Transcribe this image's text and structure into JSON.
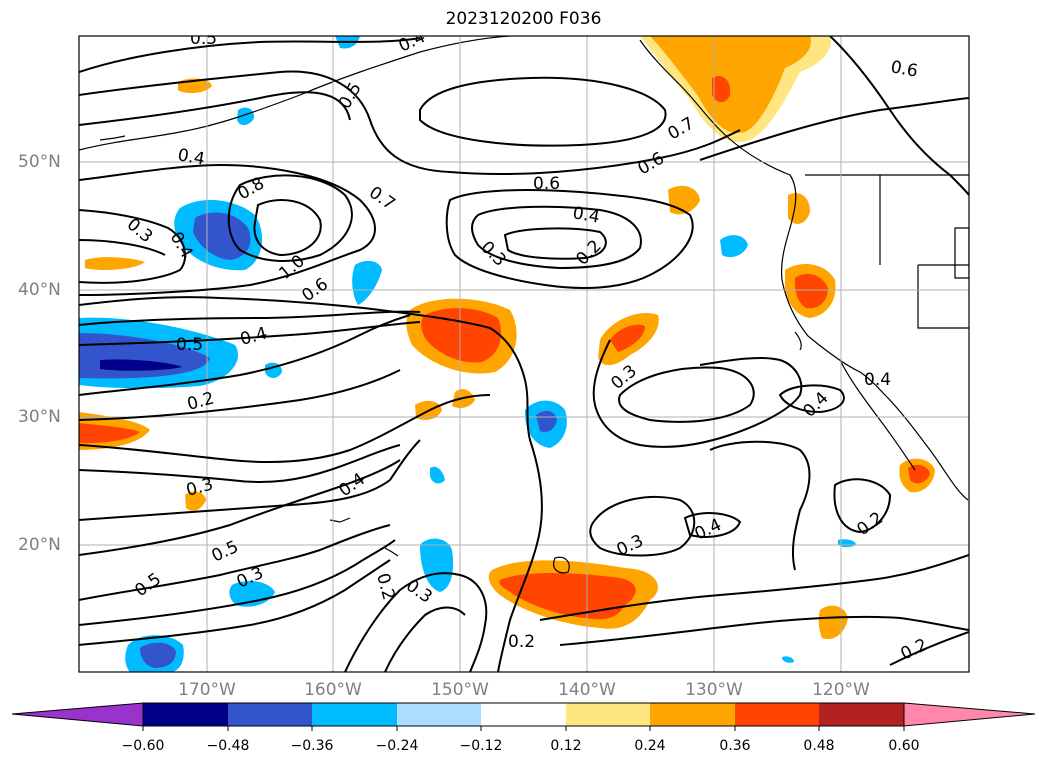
{
  "title": "2023120200 F036",
  "map": {
    "lat_labels": [
      "50°N",
      "40°N",
      "30°N",
      "20°N"
    ],
    "lon_labels": [
      "170°W",
      "160°W",
      "150°W",
      "140°W",
      "130°W",
      "120°W"
    ],
    "extent": {
      "lon": [
        -180,
        -110
      ],
      "lat": [
        10,
        60
      ]
    },
    "contour_labels": [
      "0.5",
      "0.4",
      "0.5",
      "0.4",
      "0.6",
      "0.3",
      "0.4",
      "0.8",
      "0.7",
      "0.6",
      "0.4",
      "0.3",
      "0.2",
      "0.6",
      "0.7",
      "1.0",
      "0.6",
      "0.5",
      "0.4",
      "0.2",
      "0.3",
      "0.4",
      "0.3",
      "0.5",
      "0.2",
      "0.5",
      "0.3",
      "0.3",
      "0.3",
      "0.4",
      "0.2",
      "0.2",
      "0.4",
      "0.4",
      "0.2"
    ],
    "contour_color": "#000000",
    "grid": true
  },
  "colorbar": {
    "ticks": [
      "−0.60",
      "−0.48",
      "−0.36",
      "−0.24",
      "−0.12",
      "0.12",
      "0.24",
      "0.36",
      "0.48",
      "0.60"
    ],
    "colors": [
      "#9933cc",
      "#000088",
      "#3355cc",
      "#00bbff",
      "#aaddff",
      "#ffffff",
      "#ffe680",
      "#ffa500",
      "#ff4500",
      "#b22222",
      "#ff88aa"
    ]
  }
}
